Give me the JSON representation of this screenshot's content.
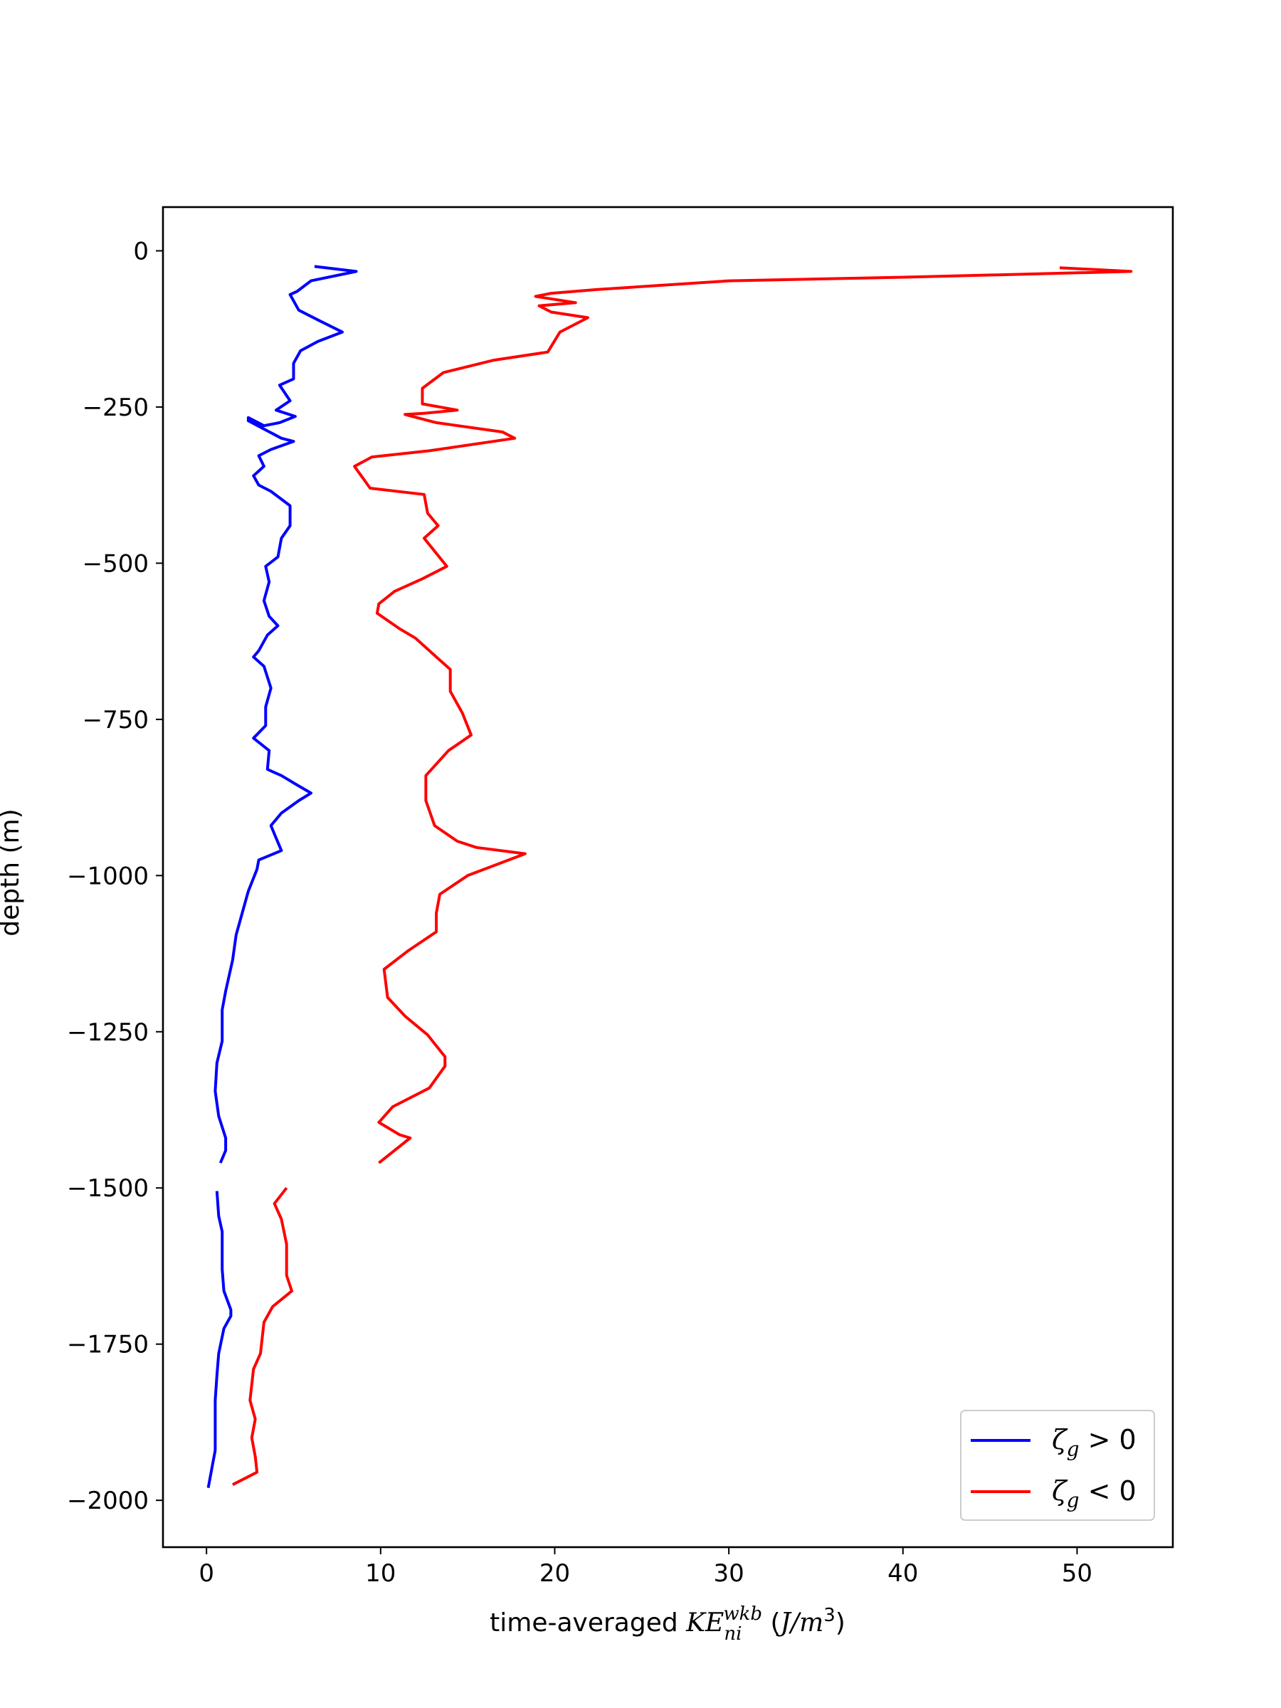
{
  "chart_data": {
    "type": "line",
    "title": "",
    "xlabel": {
      "prefix": "time-averaged ",
      "sym": "KE",
      "sub": "ni",
      "sup": "wkb",
      "unit_open": " (",
      "unit_sym": "J/m",
      "unit_sup": "3",
      "unit_close": ")"
    },
    "ylabel": "depth (m)",
    "xlim": [
      -2.5,
      55.5
    ],
    "ylim": [
      -2075,
      70
    ],
    "xticks": [
      0,
      10,
      20,
      30,
      40,
      50
    ],
    "yticks": [
      0,
      -250,
      -500,
      -750,
      -1000,
      -1250,
      -1500,
      -1750,
      -2000
    ],
    "grid": false,
    "legend_position": "bottom-right",
    "legend": [
      {
        "sym": "ζ",
        "sub": "g",
        "rel": " > 0",
        "color": "#0000ff"
      },
      {
        "sym": "ζ",
        "sub": "g",
        "rel": " < 0",
        "color": "#ff0000"
      }
    ],
    "series": [
      {
        "color": "#0000ff",
        "segments": [
          [
            [
              6.2,
              -25
            ],
            [
              8.6,
              -33
            ],
            [
              6.0,
              -48
            ],
            [
              5.2,
              -65
            ],
            [
              4.8,
              -70
            ],
            [
              5.3,
              -95
            ],
            [
              6.5,
              -112
            ],
            [
              7.8,
              -130
            ],
            [
              6.4,
              -145
            ],
            [
              5.4,
              -160
            ],
            [
              5.0,
              -180
            ],
            [
              5.0,
              -205
            ],
            [
              4.2,
              -215
            ],
            [
              4.8,
              -240
            ],
            [
              4.0,
              -255
            ],
            [
              5.1,
              -265
            ],
            [
              4.2,
              -275
            ],
            [
              3.3,
              -280
            ],
            [
              2.4,
              -267
            ],
            [
              2.4,
              -272
            ],
            [
              4.3,
              -300
            ],
            [
              5.0,
              -305
            ],
            [
              3.7,
              -318
            ],
            [
              3.0,
              -328
            ],
            [
              3.3,
              -345
            ],
            [
              2.7,
              -360
            ],
            [
              3.0,
              -375
            ],
            [
              3.7,
              -385
            ],
            [
              4.8,
              -408
            ],
            [
              4.8,
              -440
            ],
            [
              4.3,
              -460
            ],
            [
              4.1,
              -490
            ],
            [
              3.4,
              -505
            ],
            [
              3.6,
              -530
            ],
            [
              3.3,
              -560
            ],
            [
              3.6,
              -585
            ],
            [
              4.1,
              -600
            ],
            [
              3.5,
              -615
            ],
            [
              3.0,
              -640
            ],
            [
              2.7,
              -650
            ],
            [
              3.3,
              -665
            ],
            [
              3.7,
              -700
            ],
            [
              3.4,
              -730
            ],
            [
              3.4,
              -760
            ],
            [
              2.7,
              -780
            ],
            [
              3.6,
              -800
            ],
            [
              3.5,
              -830
            ],
            [
              4.3,
              -840
            ],
            [
              5.2,
              -855
            ],
            [
              6.0,
              -868
            ],
            [
              5.3,
              -880
            ],
            [
              4.3,
              -900
            ],
            [
              3.7,
              -920
            ],
            [
              4.0,
              -940
            ],
            [
              4.3,
              -960
            ],
            [
              3.0,
              -975
            ],
            [
              2.9,
              -990
            ],
            [
              2.4,
              -1025
            ],
            [
              2.0,
              -1065
            ],
            [
              1.7,
              -1095
            ],
            [
              1.5,
              -1135
            ],
            [
              1.1,
              -1185
            ],
            [
              0.9,
              -1215
            ],
            [
              0.9,
              -1265
            ],
            [
              0.6,
              -1300
            ],
            [
              0.5,
              -1345
            ],
            [
              0.7,
              -1385
            ],
            [
              1.1,
              -1420
            ],
            [
              1.1,
              -1440
            ],
            [
              0.8,
              -1460
            ]
          ],
          [
            [
              0.6,
              -1505
            ],
            [
              0.7,
              -1545
            ],
            [
              0.9,
              -1570
            ],
            [
              0.9,
              -1630
            ],
            [
              1.0,
              -1665
            ],
            [
              1.4,
              -1695
            ],
            [
              1.4,
              -1705
            ],
            [
              1.0,
              -1725
            ],
            [
              0.7,
              -1765
            ],
            [
              0.6,
              -1800
            ],
            [
              0.5,
              -1840
            ],
            [
              0.5,
              -1880
            ],
            [
              0.5,
              -1920
            ],
            [
              0.3,
              -1950
            ],
            [
              0.1,
              -1980
            ]
          ]
        ]
      },
      {
        "color": "#ff0000",
        "segments": [
          [
            [
              49.0,
              -27
            ],
            [
              53.1,
              -33
            ],
            [
              40.5,
              -42
            ],
            [
              30.0,
              -48
            ],
            [
              22.4,
              -62
            ],
            [
              19.8,
              -68
            ],
            [
              18.9,
              -73
            ],
            [
              21.2,
              -83
            ],
            [
              19.1,
              -88
            ],
            [
              19.8,
              -98
            ],
            [
              21.9,
              -107
            ],
            [
              20.3,
              -130
            ],
            [
              19.6,
              -162
            ],
            [
              16.5,
              -175
            ],
            [
              13.6,
              -195
            ],
            [
              12.4,
              -220
            ],
            [
              12.4,
              -245
            ],
            [
              14.4,
              -255
            ],
            [
              12.5,
              -260
            ],
            [
              11.4,
              -262
            ],
            [
              13.2,
              -275
            ],
            [
              17.0,
              -290
            ],
            [
              17.7,
              -300
            ],
            [
              12.8,
              -320
            ],
            [
              9.5,
              -330
            ],
            [
              8.5,
              -345
            ],
            [
              9.4,
              -380
            ],
            [
              12.5,
              -390
            ],
            [
              12.7,
              -420
            ],
            [
              13.3,
              -440
            ],
            [
              12.5,
              -460
            ],
            [
              13.8,
              -505
            ],
            [
              12.4,
              -525
            ],
            [
              10.8,
              -545
            ],
            [
              9.9,
              -565
            ],
            [
              9.8,
              -580
            ],
            [
              11.1,
              -605
            ],
            [
              12.0,
              -620
            ],
            [
              13.2,
              -650
            ],
            [
              14.0,
              -670
            ],
            [
              14.0,
              -705
            ],
            [
              14.7,
              -740
            ],
            [
              15.2,
              -775
            ],
            [
              13.9,
              -800
            ],
            [
              12.6,
              -840
            ],
            [
              12.6,
              -880
            ],
            [
              13.1,
              -920
            ],
            [
              14.4,
              -945
            ],
            [
              15.5,
              -955
            ],
            [
              18.3,
              -965
            ],
            [
              15.0,
              -1000
            ],
            [
              13.4,
              -1030
            ],
            [
              13.2,
              -1060
            ],
            [
              13.2,
              -1090
            ],
            [
              11.6,
              -1120
            ],
            [
              10.2,
              -1150
            ],
            [
              10.4,
              -1195
            ],
            [
              11.4,
              -1225
            ],
            [
              12.7,
              -1255
            ],
            [
              13.7,
              -1290
            ],
            [
              13.7,
              -1305
            ],
            [
              12.8,
              -1340
            ],
            [
              10.7,
              -1370
            ],
            [
              9.9,
              -1395
            ],
            [
              11.1,
              -1415
            ],
            [
              11.7,
              -1420
            ],
            [
              9.9,
              -1460
            ]
          ],
          [
            [
              4.6,
              -1500
            ],
            [
              3.9,
              -1525
            ],
            [
              4.3,
              -1550
            ],
            [
              4.6,
              -1590
            ],
            [
              4.6,
              -1640
            ],
            [
              4.9,
              -1665
            ],
            [
              3.8,
              -1690
            ],
            [
              3.3,
              -1715
            ],
            [
              3.1,
              -1765
            ],
            [
              2.7,
              -1790
            ],
            [
              2.5,
              -1840
            ],
            [
              2.8,
              -1870
            ],
            [
              2.6,
              -1900
            ],
            [
              2.8,
              -1930
            ],
            [
              2.9,
              -1955
            ],
            [
              1.5,
              -1975
            ]
          ]
        ]
      }
    ]
  }
}
